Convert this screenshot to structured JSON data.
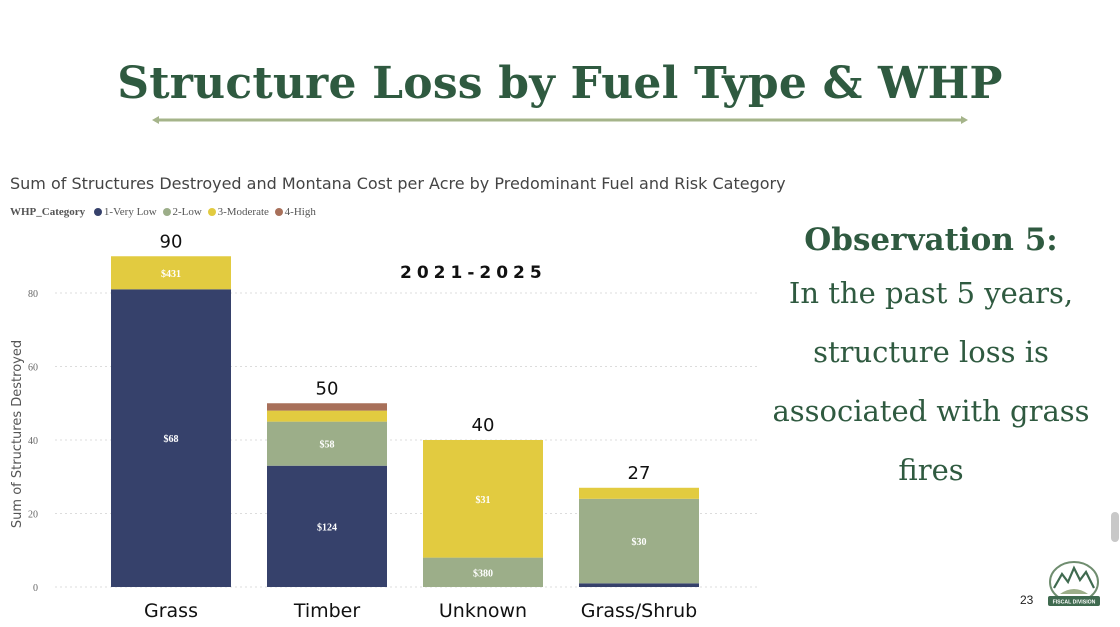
{
  "slide": {
    "title": "Structure Loss by Fuel Type & WHP",
    "page_number": "23"
  },
  "logo": {
    "text": "FISCAL DIVISION"
  },
  "observation": {
    "heading": "Observation 5:",
    "text": "In the past 5 years, structure loss is associated with grass fires"
  },
  "chart_data": {
    "type": "bar",
    "stacked": true,
    "title": "Sum of Structures Destroyed and Montana Cost per Acre by Predominant Fuel and Risk Category",
    "annotation": "2021-2025",
    "legend_title": "WHP_Category",
    "legend_position": "top-left",
    "xlabel": "",
    "ylabel": "Sum of Structures Destroyed",
    "ylim": [
      0,
      90
    ],
    "yticks": [
      "0",
      "20",
      "40",
      "60",
      "80"
    ],
    "grid": true,
    "categories": [
      "Grass",
      "Timber",
      "Unknown",
      "Grass/Shrub"
    ],
    "totals": [
      "90",
      "50",
      "40",
      "27"
    ],
    "colors": {
      "1-Very Low": "#36416b",
      "2-Low": "#9cae89",
      "3-Moderate": "#e2cb40",
      "4-High": "#a8705a"
    },
    "series": [
      {
        "name": "1-Very Low",
        "values": [
          81,
          33,
          0,
          1
        ],
        "labels": [
          "$68",
          "$124",
          "",
          ""
        ]
      },
      {
        "name": "2-Low",
        "values": [
          0,
          12,
          8,
          23
        ],
        "labels": [
          "",
          "$58",
          "$380",
          "$30"
        ]
      },
      {
        "name": "3-Moderate",
        "values": [
          9,
          3,
          32,
          3
        ],
        "labels": [
          "$431",
          "",
          "$31",
          ""
        ]
      },
      {
        "name": "4-High",
        "values": [
          0,
          2,
          0,
          0
        ],
        "labels": [
          "",
          "",
          "",
          ""
        ]
      }
    ]
  }
}
